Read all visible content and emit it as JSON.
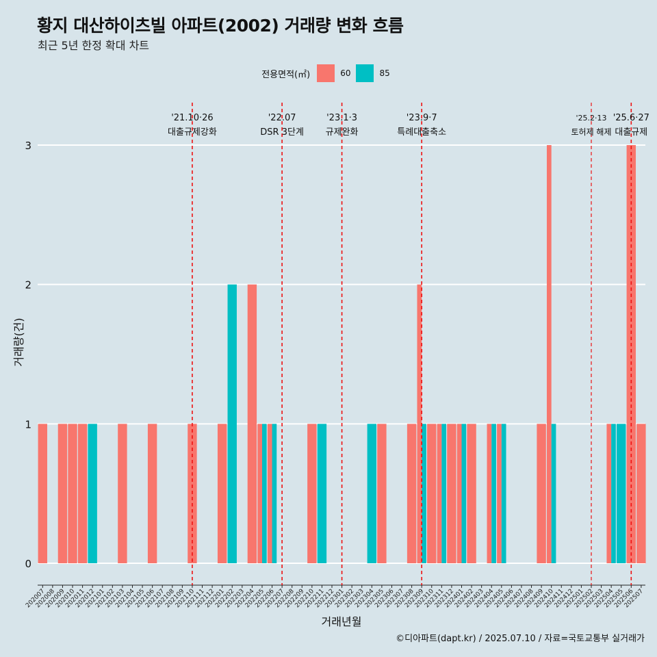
{
  "title": "황지 대산하이츠빌 아파트(2002) 거래량 변화 흐름",
  "subtitle": "최근 5년 한정 확대 차트",
  "caption": "©디아파트(dapt.kr) / 2025.07.10 / 자료=국토교통부 실거래가",
  "legend": {
    "title": "전용면적(㎡)",
    "items": [
      {
        "label": "60",
        "color": "#F8766D"
      },
      {
        "label": "85",
        "color": "#00BFC4"
      }
    ]
  },
  "chart_data": {
    "type": "bar",
    "xlabel": "거래년월",
    "ylabel": "거래량(건)",
    "ylim": [
      0,
      3
    ],
    "yticks": [
      0,
      1,
      2,
      3
    ],
    "categories": [
      "202007",
      "202008",
      "202009",
      "202010",
      "202011",
      "202012",
      "202101",
      "202102",
      "202103",
      "202104",
      "202105",
      "202106",
      "202107",
      "202108",
      "202109",
      "202110",
      "202111",
      "202112",
      "202201",
      "202202",
      "202203",
      "202204",
      "202205",
      "202206",
      "202207",
      "202208",
      "202209",
      "202210",
      "202211",
      "202212",
      "202301",
      "202302",
      "202303",
      "202304",
      "202305",
      "202306",
      "202307",
      "202308",
      "202309",
      "202310",
      "202311",
      "202312",
      "202401",
      "202402",
      "202403",
      "202404",
      "202405",
      "202406",
      "202407",
      "202408",
      "202409",
      "202410",
      "202411",
      "202412",
      "202501",
      "202502",
      "202503",
      "202504",
      "202505",
      "202506",
      "202507"
    ],
    "series": [
      {
        "name": "60",
        "color": "#F8766D",
        "values": [
          1,
          0,
          1,
          1,
          1,
          0,
          0,
          0,
          1,
          0,
          0,
          1,
          0,
          0,
          0,
          1,
          0,
          0,
          1,
          0,
          0,
          2,
          1,
          1,
          0,
          0,
          0,
          1,
          0,
          0,
          0,
          0,
          0,
          0,
          1,
          0,
          0,
          1,
          2,
          1,
          1,
          1,
          1,
          1,
          0,
          1,
          1,
          0,
          0,
          0,
          1,
          3,
          0,
          0,
          0,
          0,
          0,
          1,
          0,
          3,
          1
        ]
      },
      {
        "name": "85",
        "color": "#00BFC4",
        "values": [
          0,
          0,
          0,
          0,
          0,
          1,
          0,
          0,
          0,
          0,
          0,
          0,
          0,
          0,
          0,
          0,
          0,
          0,
          0,
          2,
          0,
          0,
          1,
          1,
          0,
          0,
          0,
          0,
          1,
          0,
          0,
          0,
          0,
          1,
          0,
          0,
          0,
          0,
          1,
          0,
          1,
          0,
          1,
          0,
          0,
          1,
          1,
          0,
          0,
          0,
          0,
          1,
          0,
          0,
          0,
          0,
          0,
          1,
          1,
          0,
          0
        ]
      }
    ],
    "annotations": [
      {
        "category": "202110",
        "date": "'21.10·26",
        "label": "대출규제강화"
      },
      {
        "category": "202207",
        "date": "'22.07",
        "label": "DSR 3단계"
      },
      {
        "category": "202301",
        "date": "'23.1·3",
        "label": "규제완화"
      },
      {
        "category": "202309",
        "date": "'23.9·7",
        "label": "특례대출축소"
      },
      {
        "category": "202502",
        "date": "'25.2·13",
        "label": "토허제 해제"
      },
      {
        "category": "202506",
        "date": "'25.6·27",
        "label": "대출규제"
      }
    ],
    "grid": true,
    "legend_position": "top"
  }
}
